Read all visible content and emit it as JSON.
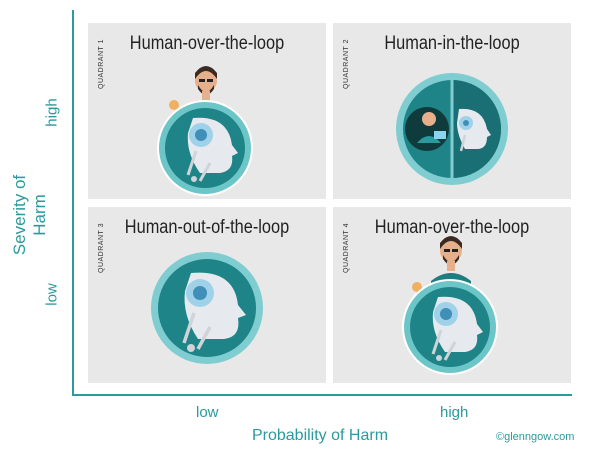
{
  "axes": {
    "y_label": "Severity of Harm",
    "y_high": "high",
    "y_low": "low",
    "x_label": "Probability of Harm",
    "x_low": "low",
    "x_high": "high"
  },
  "quadrants": [
    {
      "label": "QUADRANT 1",
      "title": "Human-over-the-loop"
    },
    {
      "label": "QUADRANT 2",
      "title": "Human-in-the-loop"
    },
    {
      "label": "QUADRANT 3",
      "title": "Human-out-of-the-loop"
    },
    {
      "label": "QUADRANT 4",
      "title": "Human-over-the-loop"
    }
  ],
  "credit": "©glenngow.com",
  "colors": {
    "accent": "#2a9a9c",
    "teal_dark": "#1e7d80",
    "panel": "#e8e8e8"
  }
}
